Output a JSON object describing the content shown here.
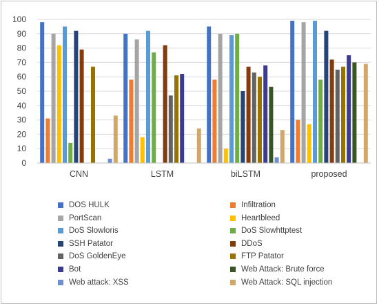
{
  "chart_data": {
    "type": "bar",
    "categories": [
      "CNN",
      "LSTM",
      "biLSTM",
      "proposed"
    ],
    "ylim": [
      0,
      100
    ],
    "y_ticks": [
      0,
      10,
      20,
      30,
      40,
      50,
      60,
      70,
      80,
      90,
      100
    ],
    "grid": true,
    "legend_position": "bottom",
    "series": [
      {
        "name": "DOS HULK",
        "color": "#4472c4",
        "values": [
          98,
          90,
          95,
          99
        ]
      },
      {
        "name": "Infiltration",
        "color": "#ed7d31",
        "values": [
          31,
          58,
          58,
          30
        ]
      },
      {
        "name": "PortScan",
        "color": "#a5a5a5",
        "values": [
          90,
          86,
          90,
          98
        ]
      },
      {
        "name": "Heartbleed",
        "color": "#ffc000",
        "values": [
          82,
          18,
          10,
          27
        ]
      },
      {
        "name": "DoS Slowloris",
        "color": "#5b9bd5",
        "values": [
          95,
          92,
          89,
          99
        ]
      },
      {
        "name": "DoS Slowhttptest",
        "color": "#70ad47",
        "values": [
          14,
          77,
          90,
          58
        ]
      },
      {
        "name": "SSH Patator",
        "color": "#264478",
        "values": [
          92,
          0,
          50,
          92
        ]
      },
      {
        "name": "DDoS",
        "color": "#843c0c",
        "values": [
          79,
          82,
          67,
          72
        ]
      },
      {
        "name": "DoS GoldenEye",
        "color": "#636363",
        "values": [
          0,
          47,
          63,
          65
        ]
      },
      {
        "name": "FTP Patator",
        "color": "#997300",
        "values": [
          67,
          61,
          60,
          67
        ]
      },
      {
        "name": "Bot",
        "color": "#3b3b8f",
        "values": [
          0,
          62,
          68,
          75
        ]
      },
      {
        "name": "Web Attack: Brute force",
        "color": "#375623",
        "values": [
          0,
          0,
          53,
          70
        ]
      },
      {
        "name": "Web attack: XSS",
        "color": "#6f8fd0",
        "values": [
          3,
          0,
          4,
          0
        ]
      },
      {
        "name": "Web Attack: SQL injection",
        "color": "#d2a86a",
        "values": [
          33,
          24,
          23,
          69
        ]
      }
    ]
  }
}
